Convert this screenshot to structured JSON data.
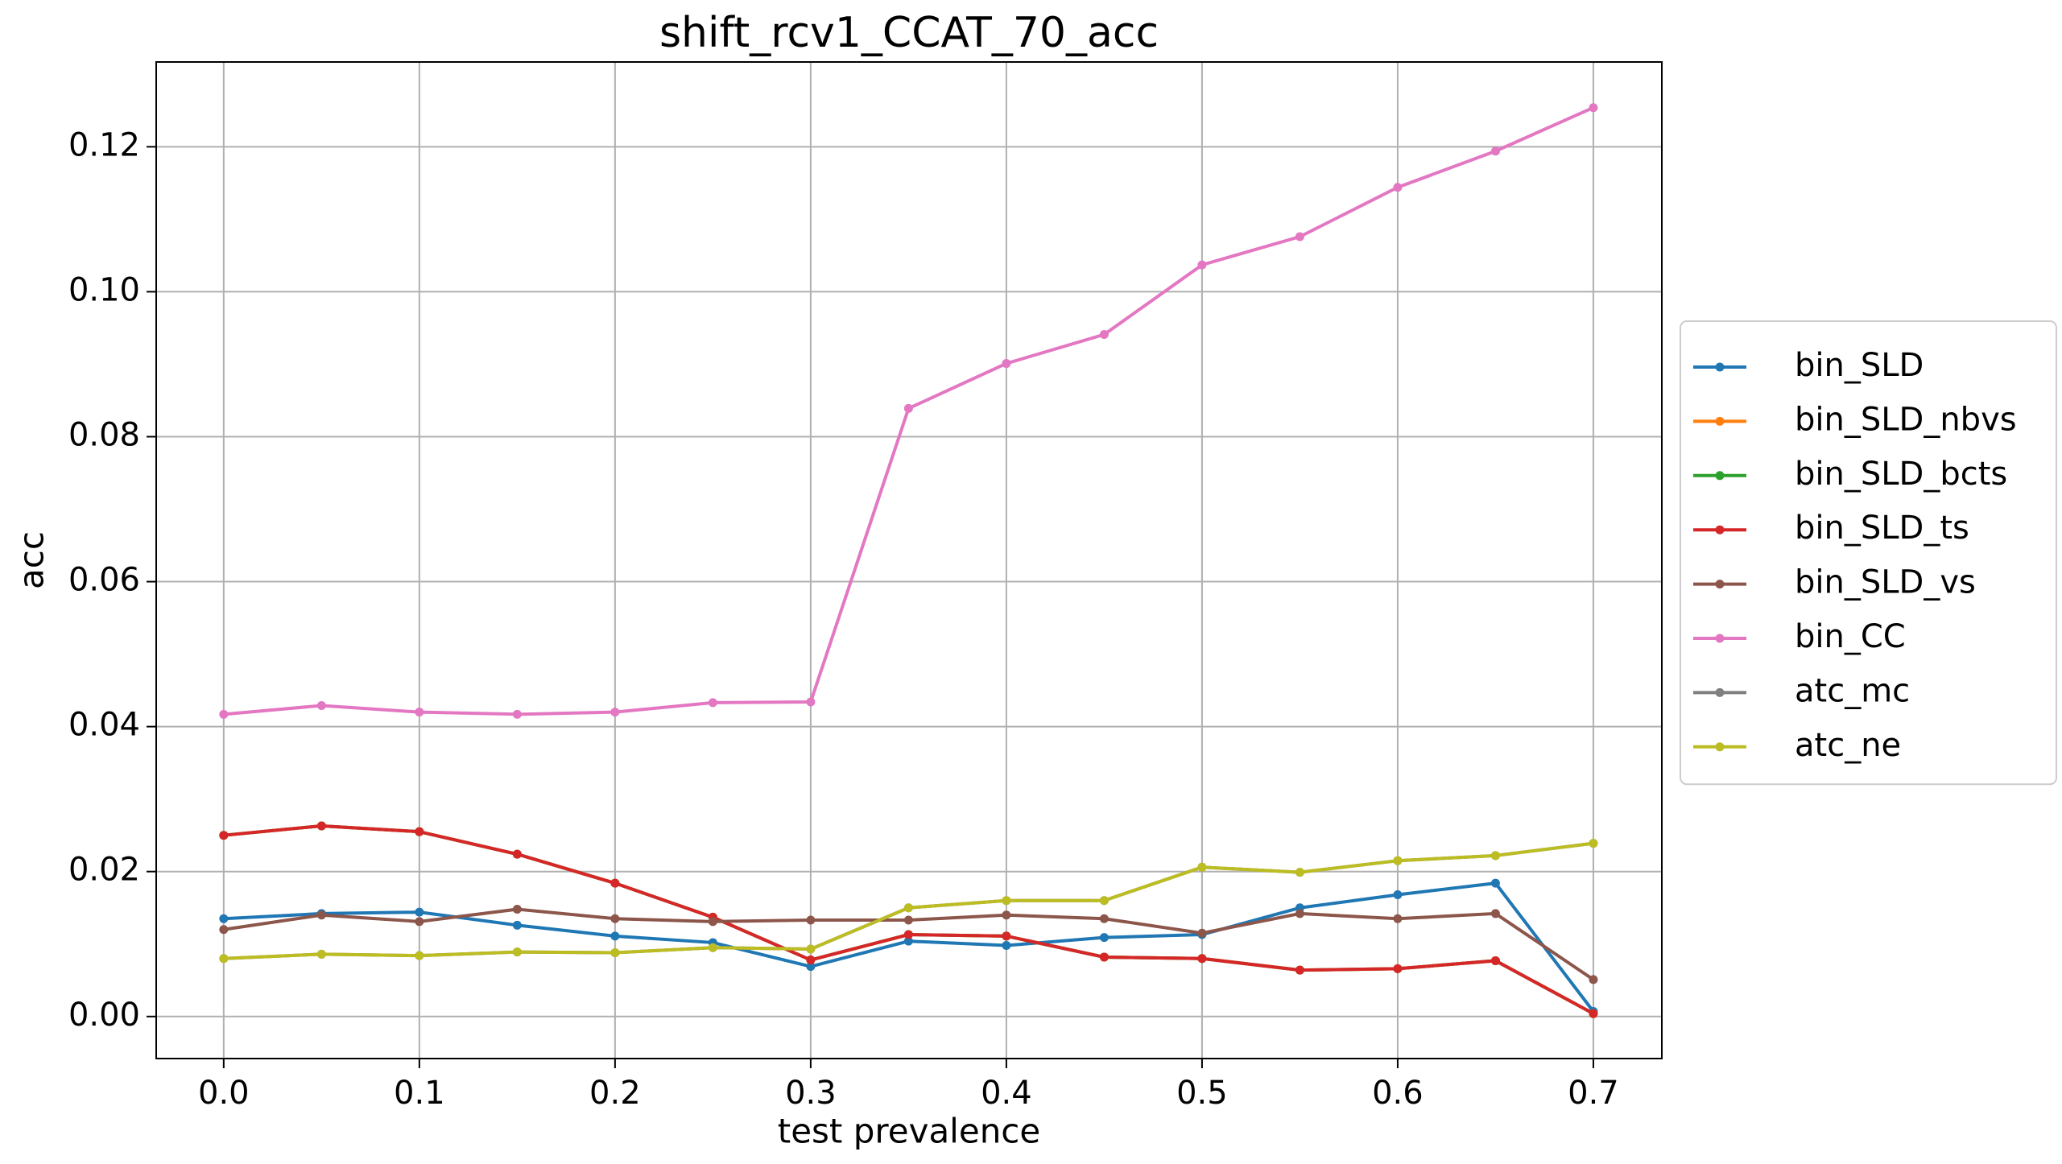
{
  "chart_data": {
    "type": "line",
    "title": "shift_rcv1_CCAT_70_acc",
    "x_label": "test prevalence",
    "y_label": "acc",
    "x": [
      0.0,
      0.05,
      0.1,
      0.15,
      0.2,
      0.25,
      0.3,
      0.35,
      0.4,
      0.45,
      0.5,
      0.55,
      0.6,
      0.65,
      0.7
    ],
    "series": [
      {
        "name": "bin_SLD",
        "color": "#1f77b4",
        "values": [
          0.0135,
          0.0142,
          0.0144,
          0.0126,
          0.0111,
          0.0102,
          0.0069,
          0.0104,
          0.0098,
          0.0109,
          0.0113,
          0.015,
          0.0168,
          0.0184,
          0.0007
        ]
      },
      {
        "name": "bin_SLD_nbvs",
        "color": "#ff7f0e",
        "values": [
          0.025,
          0.0263,
          0.0255,
          0.0224,
          0.0184,
          0.0137,
          0.0078,
          0.0113,
          0.0111,
          0.0082,
          0.008,
          0.0064,
          0.0066,
          0.0077,
          0.0004
        ]
      },
      {
        "name": "bin_SLD_bcts",
        "color": "#2ca02c",
        "values": [
          0.025,
          0.0263,
          0.0255,
          0.0224,
          0.0184,
          0.0137,
          0.0078,
          0.0113,
          0.0111,
          0.0082,
          0.008,
          0.0064,
          0.0066,
          0.0077,
          0.0004
        ]
      },
      {
        "name": "bin_SLD_ts",
        "color": "#d62728",
        "values": [
          0.025,
          0.0263,
          0.0255,
          0.0224,
          0.0184,
          0.0137,
          0.0078,
          0.0113,
          0.0111,
          0.0082,
          0.008,
          0.0064,
          0.0066,
          0.0077,
          0.0004
        ]
      },
      {
        "name": "bin_SLD_vs",
        "color": "#8c564b",
        "values": [
          0.012,
          0.014,
          0.0131,
          0.0148,
          0.0135,
          0.0131,
          0.0133,
          0.0133,
          0.014,
          0.0135,
          0.0115,
          0.0142,
          0.0135,
          0.0142,
          0.0051
        ]
      },
      {
        "name": "bin_CC",
        "color": "#e377c2",
        "values": [
          0.0417,
          0.0429,
          0.042,
          0.0417,
          0.042,
          0.0433,
          0.0434,
          0.0839,
          0.0901,
          0.0941,
          0.1037,
          0.1076,
          0.1144,
          0.1194,
          0.1254
        ]
      },
      {
        "name": "atc_mc",
        "color": "#7f7f7f",
        "values": [
          0.008,
          0.0086,
          0.0084,
          0.0089,
          0.0088,
          0.0095,
          0.0093,
          0.015,
          0.016,
          0.016,
          0.0206,
          0.0199,
          0.0215,
          0.0222,
          0.0239
        ]
      },
      {
        "name": "atc_ne",
        "color": "#bcbd22",
        "values": [
          0.008,
          0.0086,
          0.0084,
          0.0089,
          0.0088,
          0.0095,
          0.0093,
          0.015,
          0.016,
          0.016,
          0.0206,
          0.0199,
          0.0215,
          0.0222,
          0.0239
        ]
      }
    ],
    "xlim": [
      -0.0345,
      0.735
    ],
    "ylim": [
      -0.0058,
      0.1317
    ],
    "xticks": [
      {
        "value": 0,
        "label": "0.0"
      },
      0.1,
      0.2,
      0.3,
      0.4,
      0.5,
      0.6,
      0.7
    ],
    "yticks": [
      {
        "value": 0,
        "label": "0.00"
      },
      {
        "value": 0.02,
        "label": "0.02"
      },
      {
        "value": 0.04,
        "label": "0.04"
      },
      {
        "value": 0.06,
        "label": "0.06"
      },
      {
        "value": 0.08,
        "label": "0.08"
      },
      {
        "value": 0.1,
        "label": "0.10"
      },
      {
        "value": 0.12,
        "label": "0.12"
      }
    ],
    "grid": true,
    "legend": "outside-right"
  }
}
